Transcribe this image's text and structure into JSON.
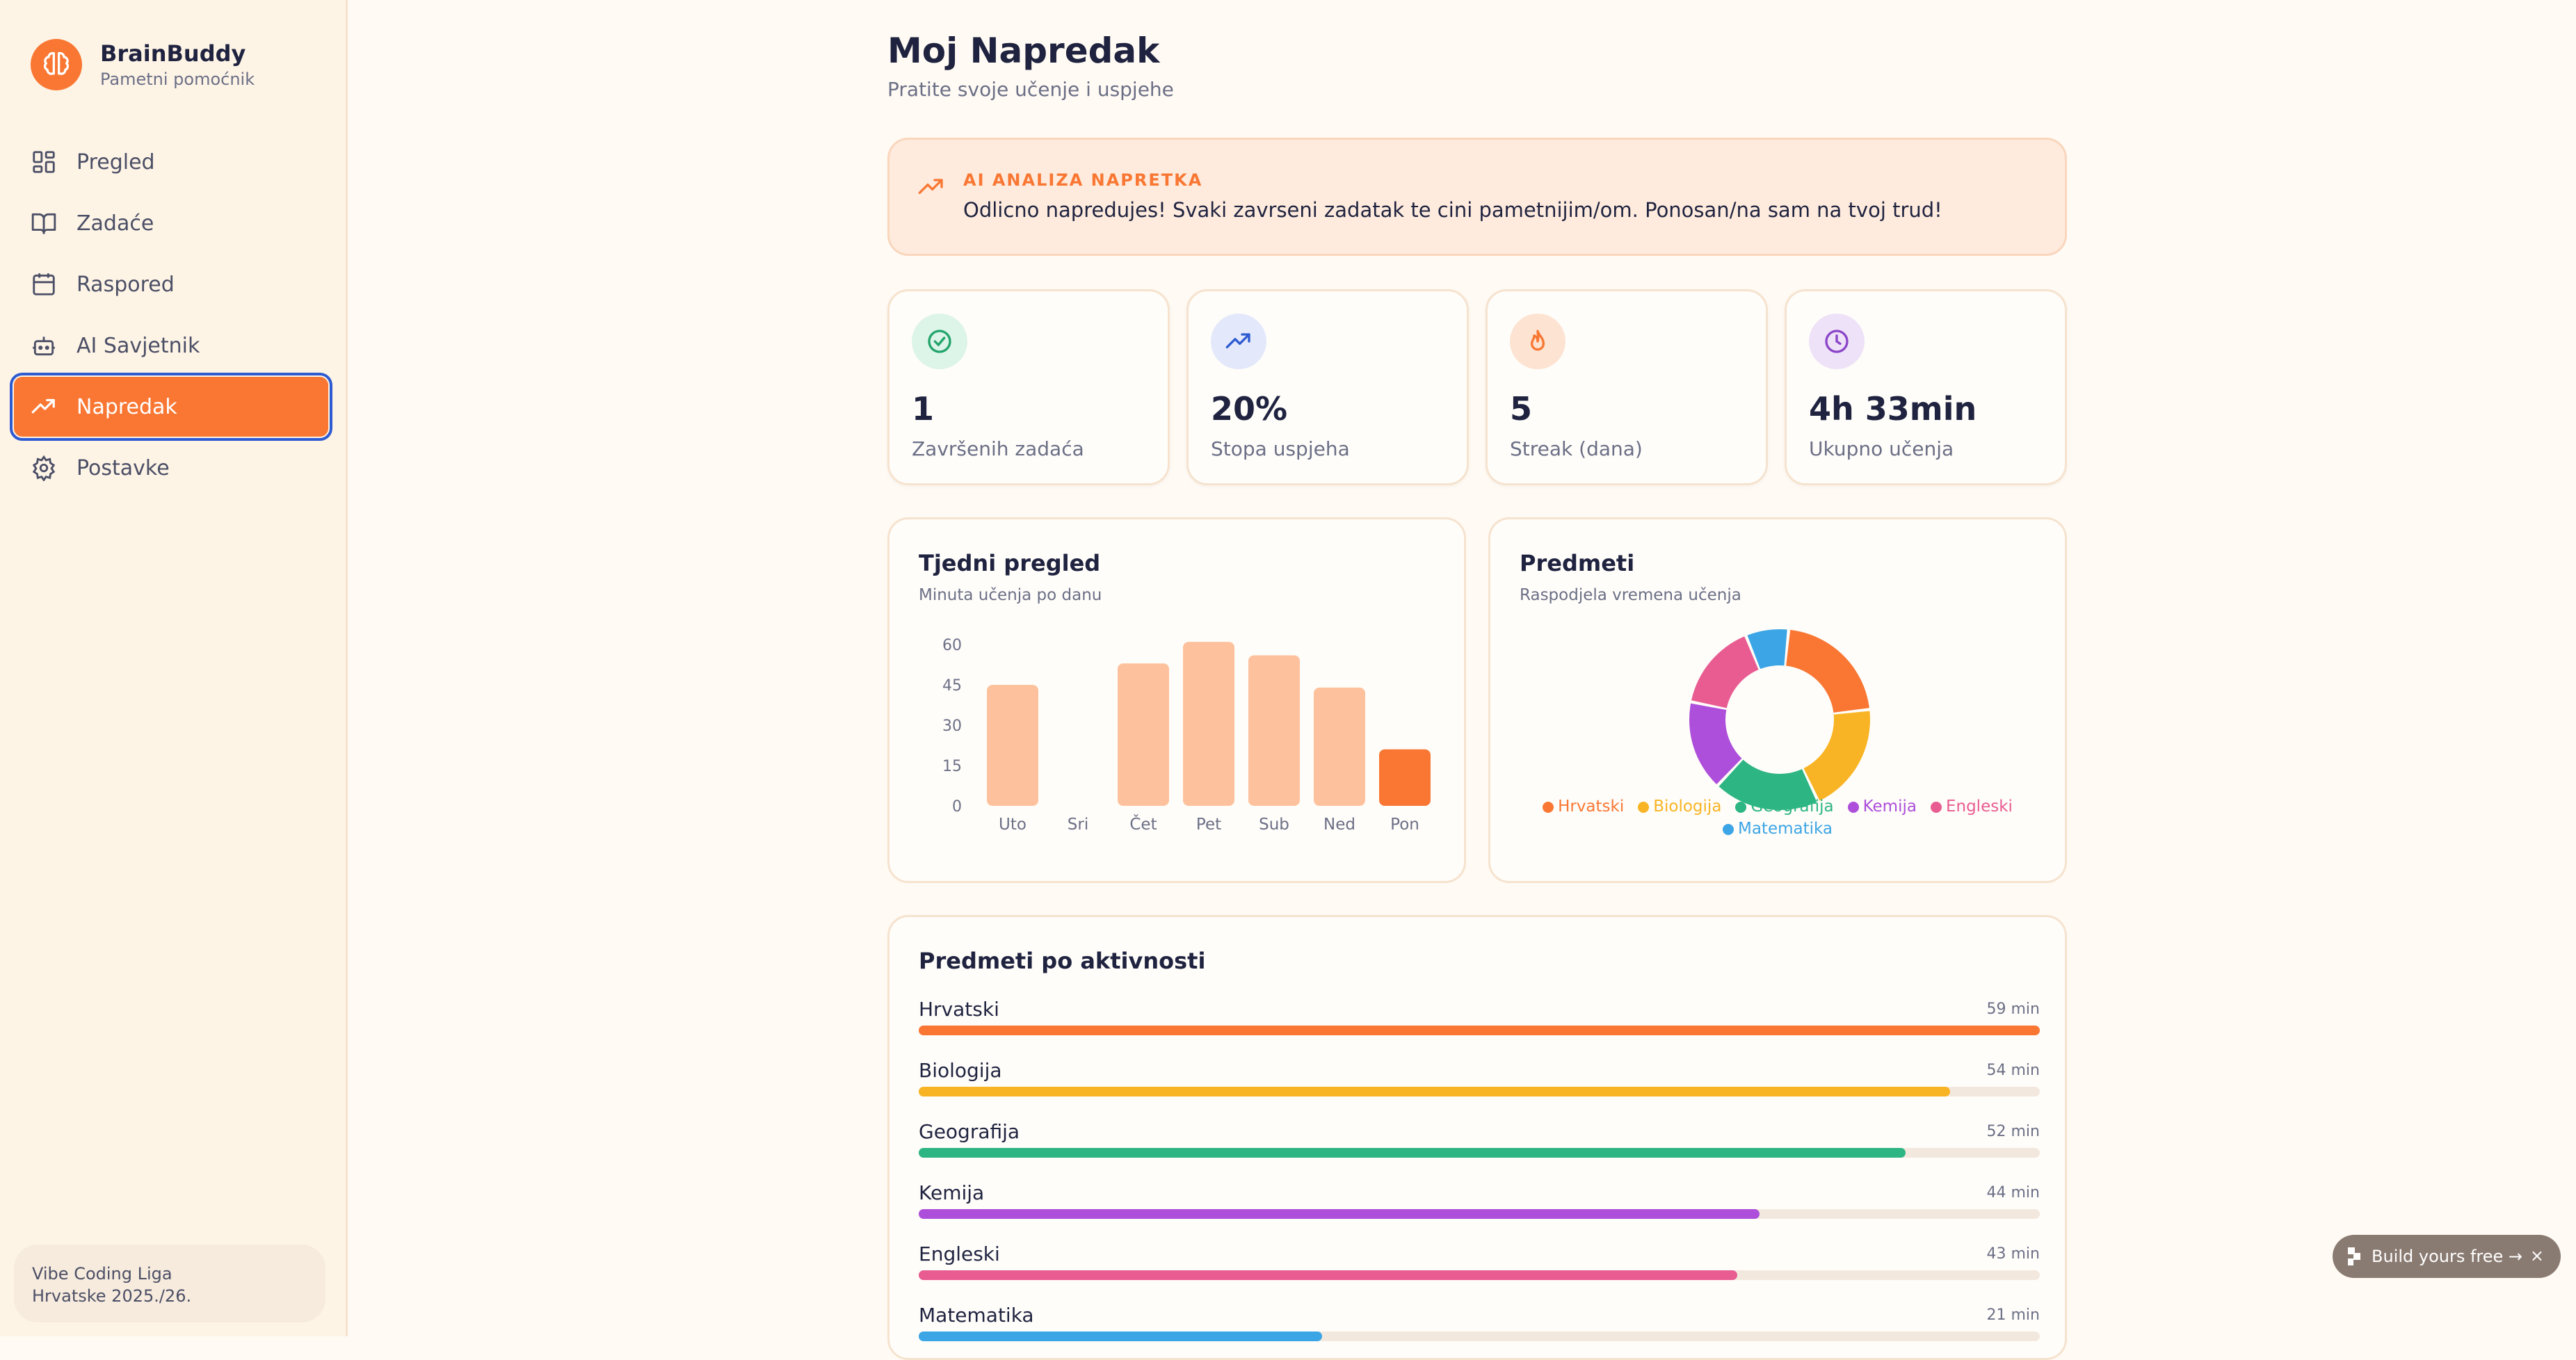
{
  "app": {
    "name": "BrainBuddy",
    "subtitle": "Pametni pomoćnik"
  },
  "sidebar": {
    "items": [
      {
        "label": "Pregled",
        "icon": "dashboard-icon",
        "active": false
      },
      {
        "label": "Zadaće",
        "icon": "book-icon",
        "active": false
      },
      {
        "label": "Raspored",
        "icon": "calendar-icon",
        "active": false
      },
      {
        "label": "AI Savjetnik",
        "icon": "robot-icon",
        "active": false
      },
      {
        "label": "Napredak",
        "icon": "trending-up-icon",
        "active": true
      },
      {
        "label": "Postavke",
        "icon": "gear-icon",
        "active": false
      }
    ],
    "footer": {
      "line1": "Vibe Coding Liga",
      "line2": "Hrvatske 2025./26."
    }
  },
  "header": {
    "title": "Moj Napredak",
    "subtitle": "Pratite svoje učenje i uspjehe"
  },
  "ai_analysis": {
    "label": "AI ANALIZA NAPRETKA",
    "text": "Odlicno napredujes! Svaki zavrseni zadatak te cini pametnijim/om. Ponosan/na sam na tvoj trud!"
  },
  "stats": [
    {
      "value": "1",
      "label": "Završenih zadaća",
      "icon": "check-circle-icon",
      "color": "#22A46B",
      "bg": "#DDF4E8"
    },
    {
      "value": "20%",
      "label": "Stopa uspjeha",
      "icon": "trending-up-icon",
      "color": "#2F5BD2",
      "bg": "#E3E8FB"
    },
    {
      "value": "5",
      "label": "Streak (dana)",
      "icon": "flame-icon",
      "color": "#F97733",
      "bg": "#FDE3D2"
    },
    {
      "value": "4h 33min",
      "label": "Ukupno učenja",
      "icon": "clock-icon",
      "color": "#8B45C8",
      "bg": "#EEE2F8"
    }
  ],
  "weekly": {
    "title": "Tjedni pregled",
    "subtitle": "Minuta učenja po danu",
    "chart_data": {
      "type": "bar",
      "categories": [
        "Uto",
        "Sri",
        "Čet",
        "Pet",
        "Sub",
        "Ned",
        "Pon"
      ],
      "values": [
        45,
        0,
        53,
        61,
        56,
        44,
        21
      ],
      "highlight_index": 6,
      "yticks": [
        0,
        15,
        30,
        45,
        60
      ],
      "ylim": [
        0,
        60
      ]
    }
  },
  "subjects": {
    "title": "Predmeti",
    "subtitle": "Raspodjela vremena učenja",
    "chart_data": {
      "type": "pie",
      "categories": [
        "Hrvatski",
        "Biologija",
        "Geografija",
        "Kemija",
        "Engleski",
        "Matematika"
      ],
      "values": [
        59,
        54,
        52,
        44,
        43,
        21
      ],
      "colors": [
        "#F97733",
        "#F8B424",
        "#2DB584",
        "#AD4FDB",
        "#E85C92",
        "#3BA5E6"
      ]
    }
  },
  "activity": {
    "title": "Predmeti po aktivnosti",
    "unit": "min",
    "items": [
      {
        "name": "Hrvatski",
        "minutes": "59 min",
        "fraction": 1.0,
        "color": "#F97733"
      },
      {
        "name": "Biologija",
        "minutes": "54 min",
        "fraction": 0.92,
        "color": "#F8B424"
      },
      {
        "name": "Geografija",
        "minutes": "52 min",
        "fraction": 0.88,
        "color": "#2DB584"
      },
      {
        "name": "Kemija",
        "minutes": "44 min",
        "fraction": 0.75,
        "color": "#AD4FDB"
      },
      {
        "name": "Engleski",
        "minutes": "43 min",
        "fraction": 0.73,
        "color": "#E85C92"
      },
      {
        "name": "Matematika",
        "minutes": "21 min",
        "fraction": 0.36,
        "color": "#3BA5E6"
      }
    ]
  },
  "build_button": {
    "label": "Build yours free →",
    "close": "×"
  }
}
